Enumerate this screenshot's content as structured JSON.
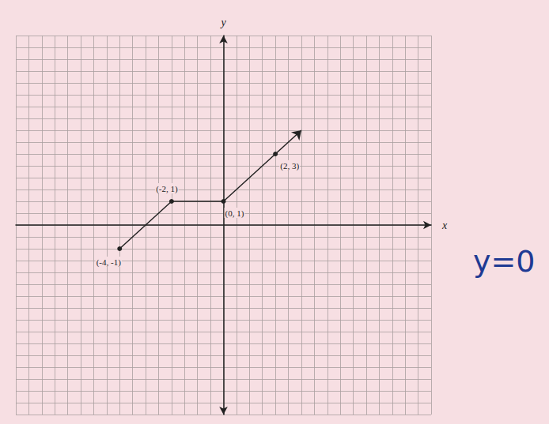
{
  "chart_data": {
    "type": "line",
    "x_label": "x",
    "y_label": "y",
    "x": [
      -4,
      -2,
      0,
      2,
      3
    ],
    "values": [
      -1,
      1,
      1,
      3,
      4
    ],
    "value_labels": [
      "(-4, -1)",
      "(-2, 1)",
      "(0, 1)",
      "(2, 3)",
      null
    ],
    "data_labels": true,
    "color": "#222222",
    "marker": "circle",
    "xlim": [
      -8,
      8
    ],
    "ylim": [
      -8,
      8
    ],
    "xticks": [
      -8,
      -7.5,
      -7,
      -6.5,
      -6,
      -5.5,
      -5,
      -4.5,
      -4,
      -3.5,
      -3,
      -2.5,
      -2,
      -1.5,
      -1,
      -0.5,
      0,
      0.5,
      1,
      1.5,
      2,
      2.5,
      3,
      3.5,
      4,
      4.5,
      5,
      5.5,
      6,
      6.5,
      7,
      7.5,
      8
    ],
    "yticks": [
      -8,
      -7.5,
      -7,
      -6.5,
      -6,
      -5.5,
      -5,
      -4.5,
      -4,
      -3.5,
      -3,
      -2.5,
      -2,
      -1.5,
      -1,
      -0.5,
      0,
      0.5,
      1,
      1.5,
      2,
      2.5,
      3,
      3.5,
      4,
      4.5,
      5,
      5.5,
      6,
      6.5,
      7,
      7.5,
      8
    ],
    "grid": true,
    "tick_labels": false,
    "annotations": [
      {
        "text": "y=0",
        "color": "#1f3a93"
      }
    ]
  }
}
